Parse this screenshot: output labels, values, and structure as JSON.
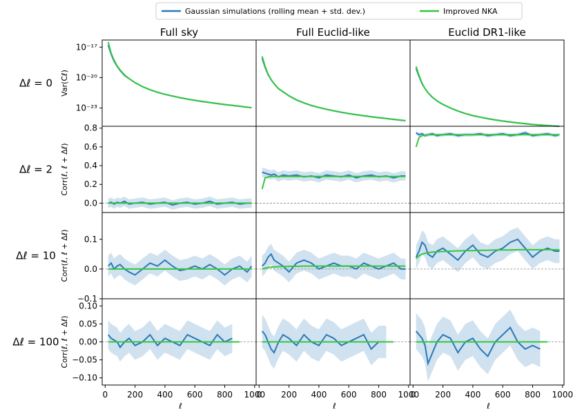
{
  "chart_data": {
    "type": "line",
    "legend": {
      "placement": "top-center",
      "entries": [
        {
          "label": "Gaussian simulations (rolling mean + std. dev.)",
          "color": "#2a78b7"
        },
        {
          "label": "Improved NKA",
          "color": "#33c63f"
        }
      ]
    },
    "columns": [
      "Full sky",
      "Full Euclid-like",
      "Euclid DR1-like"
    ],
    "rows": [
      {
        "label": "Δℓ =  0",
        "ylabel": "Var(Cℓ)",
        "scale": "log",
        "ylim_log10": [
          -24.8,
          -16.3
        ],
        "yticks": [
          {
            "v": -17,
            "label": "10⁻¹⁷"
          },
          {
            "v": -20,
            "label": "10⁻²⁰"
          },
          {
            "v": -23,
            "label": "10⁻²³"
          }
        ]
      },
      {
        "label": "Δℓ =  2",
        "ylabel": "Corr(ℓ, ℓ + Δℓ)",
        "ylim": [
          -0.1,
          0.82
        ],
        "yticks": [
          {
            "v": 0.0,
            "label": "0.0"
          },
          {
            "v": 0.2,
            "label": "0.2"
          },
          {
            "v": 0.4,
            "label": "0.4"
          },
          {
            "v": 0.6,
            "label": "0.6"
          },
          {
            "v": 0.8,
            "label": "0.8"
          }
        ]
      },
      {
        "label": "Δℓ =  10",
        "ylabel": "Corr(ℓ, ℓ + Δℓ)",
        "ylim": [
          -0.1,
          0.19
        ],
        "yticks": [
          {
            "v": -0.1,
            "label": "−0.1"
          },
          {
            "v": 0.0,
            "label": "0.0"
          },
          {
            "v": 0.1,
            "label": "0.1"
          }
        ]
      },
      {
        "label": "Δℓ =  100",
        "ylabel": "Corr(ℓ, ℓ + Δℓ)",
        "ylim": [
          -0.12,
          0.12
        ],
        "yticks": [
          {
            "v": -0.1,
            "label": "−0.10"
          },
          {
            "v": -0.05,
            "label": "−0.05"
          },
          {
            "v": 0.0,
            "label": "0.00"
          },
          {
            "v": 0.05,
            "label": "0.05"
          },
          {
            "v": 0.1,
            "label": "0.10"
          }
        ]
      }
    ],
    "xlim": [
      -20,
      1010
    ],
    "xticks": [
      0,
      200,
      400,
      600,
      800,
      1000
    ],
    "xlabel": "ℓ",
    "reference_line": {
      "y": 0,
      "style": "dashed",
      "color": "#888888"
    },
    "x_samples": [
      20,
      40,
      60,
      80,
      100,
      130,
      160,
      200,
      250,
      300,
      350,
      400,
      450,
      500,
      550,
      600,
      650,
      700,
      750,
      800,
      850,
      900,
      950,
      980
    ],
    "variance_series": [
      {
        "sim_log10": [
          -16.8,
          -17.7,
          -18.4,
          -18.9,
          -19.3,
          -19.8,
          -20.1,
          -20.5,
          -20.9,
          -21.2,
          -21.45,
          -21.65,
          -21.82,
          -21.98,
          -22.12,
          -22.24,
          -22.36,
          -22.46,
          -22.56,
          -22.66,
          -22.74,
          -22.83,
          -22.92,
          -22.97
        ],
        "nka_log10": [
          -16.5,
          -17.6,
          -18.3,
          -18.85,
          -19.25,
          -19.75,
          -20.1,
          -20.5,
          -20.9,
          -21.2,
          -21.45,
          -21.65,
          -21.82,
          -21.98,
          -22.12,
          -22.24,
          -22.36,
          -22.46,
          -22.56,
          -22.66,
          -22.74,
          -22.83,
          -22.92,
          -22.97
        ],
        "band_log10": 0.08
      },
      {
        "sim_log10": [
          -18.1,
          -19.0,
          -19.7,
          -20.2,
          -20.6,
          -21.1,
          -21.4,
          -21.8,
          -22.2,
          -22.5,
          -22.75,
          -22.95,
          -23.12,
          -23.28,
          -23.42,
          -23.55,
          -23.66,
          -23.76,
          -23.86,
          -23.95,
          -24.04,
          -24.12,
          -24.2,
          -24.25
        ],
        "nka_log10": [
          -17.9,
          -18.9,
          -19.65,
          -20.2,
          -20.6,
          -21.1,
          -21.4,
          -21.8,
          -22.2,
          -22.5,
          -22.75,
          -22.95,
          -23.12,
          -23.28,
          -23.42,
          -23.55,
          -23.66,
          -23.76,
          -23.86,
          -23.95,
          -24.04,
          -24.12,
          -24.2,
          -24.25
        ],
        "band_log10": 0.08
      },
      {
        "sim_log10": [
          -19.1,
          -19.9,
          -20.6,
          -21.1,
          -21.5,
          -21.95,
          -22.3,
          -22.65,
          -23.0,
          -23.3,
          -23.55,
          -23.75,
          -23.9,
          -24.05,
          -24.17,
          -24.28,
          -24.38,
          -24.47,
          -24.55,
          -24.62,
          -24.68,
          -24.73,
          -24.78,
          -24.8
        ],
        "nka_log10": [
          -18.9,
          -19.8,
          -20.55,
          -21.1,
          -21.5,
          -21.95,
          -22.3,
          -22.65,
          -23.0,
          -23.3,
          -23.55,
          -23.75,
          -23.9,
          -24.05,
          -24.17,
          -24.28,
          -24.38,
          -24.47,
          -24.55,
          -24.62,
          -24.68,
          -24.73,
          -24.78,
          -24.8
        ],
        "band_log10": 0.08
      }
    ],
    "correlation_series": [
      [
        {
          "sim": [
            0.0,
            0.01,
            -0.01,
            0.01,
            0.0,
            0.02,
            -0.01,
            0.0,
            0.01,
            -0.01,
            0.0,
            0.01,
            -0.02,
            0.0,
            0.01,
            -0.01,
            0.0,
            0.02,
            -0.01,
            0.0,
            0.01,
            -0.01,
            0.0,
            0.0
          ],
          "std": 0.05,
          "nka": [
            0.0,
            0.0,
            0.0,
            0.0,
            0.0,
            0.0,
            0.0,
            0.0,
            0.0,
            0.0,
            0.0,
            0.0,
            0.0,
            0.0,
            0.0,
            0.0,
            0.0,
            0.0,
            0.0,
            0.0,
            0.0,
            0.0,
            0.0,
            0.0
          ]
        },
        {
          "sim": [
            0.33,
            0.32,
            0.31,
            0.3,
            0.31,
            0.28,
            0.3,
            0.29,
            0.3,
            0.28,
            0.29,
            0.27,
            0.3,
            0.29,
            0.28,
            0.3,
            0.27,
            0.29,
            0.3,
            0.28,
            0.29,
            0.27,
            0.29,
            0.29
          ],
          "std": 0.05,
          "nka": [
            0.15,
            0.27,
            0.28,
            0.285,
            0.285,
            0.285,
            0.285,
            0.285,
            0.285,
            0.285,
            0.285,
            0.285,
            0.285,
            0.285,
            0.285,
            0.285,
            0.285,
            0.285,
            0.285,
            0.285,
            0.285,
            0.285,
            0.285,
            0.285
          ]
        },
        {
          "sim": [
            0.75,
            0.73,
            0.74,
            0.72,
            0.73,
            0.74,
            0.72,
            0.73,
            0.74,
            0.72,
            0.73,
            0.73,
            0.74,
            0.72,
            0.73,
            0.74,
            0.72,
            0.73,
            0.75,
            0.72,
            0.73,
            0.74,
            0.72,
            0.73
          ],
          "std": 0.02,
          "nka": [
            0.6,
            0.7,
            0.72,
            0.725,
            0.73,
            0.73,
            0.73,
            0.73,
            0.73,
            0.73,
            0.73,
            0.73,
            0.73,
            0.73,
            0.73,
            0.73,
            0.73,
            0.73,
            0.73,
            0.73,
            0.73,
            0.73,
            0.73,
            0.73
          ]
        }
      ],
      [
        {
          "sim": [
            0.01,
            0.02,
            0.0,
            0.01,
            0.015,
            0.0,
            -0.01,
            -0.02,
            0.0,
            0.02,
            0.01,
            0.03,
            0.01,
            -0.005,
            0.0,
            0.01,
            0.0,
            0.015,
            0.0,
            -0.02,
            0.0,
            0.01,
            -0.01,
            0.01
          ],
          "std": 0.035,
          "nka": [
            0.0,
            0.0,
            0.0,
            0.0,
            0.0,
            0.0,
            0.0,
            0.0,
            0.0,
            0.0,
            0.0,
            0.0,
            0.0,
            0.0,
            0.0,
            0.0,
            0.0,
            0.0,
            0.0,
            0.0,
            0.0,
            0.0,
            0.0,
            0.0
          ]
        },
        {
          "sim": [
            0.01,
            0.02,
            0.04,
            0.05,
            0.03,
            0.02,
            0.01,
            -0.01,
            0.02,
            0.03,
            0.02,
            0.0,
            0.01,
            0.02,
            0.01,
            0.01,
            0.0,
            0.02,
            0.01,
            0.0,
            0.01,
            0.02,
            0.0,
            0.0
          ],
          "std": 0.035,
          "nka": [
            0.0,
            0.003,
            0.005,
            0.006,
            0.007,
            0.008,
            0.008,
            0.009,
            0.009,
            0.01,
            0.01,
            0.01,
            0.01,
            0.01,
            0.01,
            0.01,
            0.01,
            0.01,
            0.01,
            0.01,
            0.01,
            0.01,
            0.01,
            0.01
          ]
        },
        {
          "sim": [
            0.04,
            0.06,
            0.09,
            0.08,
            0.05,
            0.04,
            0.06,
            0.07,
            0.05,
            0.03,
            0.06,
            0.08,
            0.05,
            0.04,
            0.06,
            0.07,
            0.09,
            0.1,
            0.07,
            0.04,
            0.06,
            0.07,
            0.06,
            0.06
          ],
          "std": 0.04,
          "nka": [
            0.035,
            0.045,
            0.05,
            0.053,
            0.055,
            0.057,
            0.058,
            0.059,
            0.06,
            0.061,
            0.062,
            0.062,
            0.063,
            0.063,
            0.064,
            0.064,
            0.064,
            0.065,
            0.065,
            0.065,
            0.065,
            0.065,
            0.065,
            0.065
          ]
        }
      ],
      [
        {
          "sim": [
            0.02,
            0.01,
            0.005,
            0.0,
            -0.015,
            0.0,
            0.01,
            -0.01,
            0.0,
            0.02,
            -0.01,
            0.01,
            0.0,
            -0.01,
            0.02,
            0.01,
            0.0,
            -0.01,
            0.02,
            0.0,
            0.01,
            null,
            null,
            null
          ],
          "std": 0.04,
          "nka": [
            0.0,
            0.0,
            0.0,
            0.0,
            0.0,
            0.0,
            0.0,
            0.0,
            0.0,
            0.0,
            0.0,
            0.0,
            0.0,
            0.0,
            0.0,
            0.0,
            0.0,
            0.0,
            0.0,
            0.0,
            0.0,
            0.0,
            null,
            null
          ]
        },
        {
          "sim": [
            0.03,
            0.02,
            0.0,
            -0.02,
            -0.03,
            0.0,
            0.02,
            0.01,
            -0.01,
            0.02,
            0.0,
            -0.01,
            0.02,
            0.01,
            -0.01,
            0.0,
            0.01,
            0.02,
            -0.02,
            0.0,
            0.0,
            null,
            null,
            null
          ],
          "std": 0.045,
          "nka": [
            0.0,
            0.0,
            0.0,
            0.0,
            0.0,
            0.0,
            0.0,
            0.0,
            0.0,
            0.0,
            0.0,
            0.0,
            0.0,
            0.0,
            0.0,
            0.0,
            0.0,
            0.0,
            0.0,
            0.0,
            0.0,
            0.0,
            null,
            null
          ]
        },
        {
          "sim": [
            0.03,
            0.02,
            0.01,
            -0.01,
            -0.06,
            -0.03,
            0.0,
            0.02,
            0.01,
            -0.03,
            0.0,
            0.01,
            -0.02,
            -0.04,
            0.0,
            0.02,
            0.04,
            0.0,
            -0.02,
            -0.01,
            -0.02,
            null,
            null,
            null
          ],
          "std": 0.05,
          "nka": [
            0.0,
            0.0,
            0.0,
            0.0,
            0.0,
            0.0,
            0.0,
            0.0,
            0.0,
            0.0,
            0.0,
            0.0,
            0.0,
            0.0,
            0.0,
            0.0,
            0.0,
            0.0,
            0.0,
            0.0,
            0.0,
            0.0,
            null,
            null
          ]
        }
      ]
    ]
  }
}
